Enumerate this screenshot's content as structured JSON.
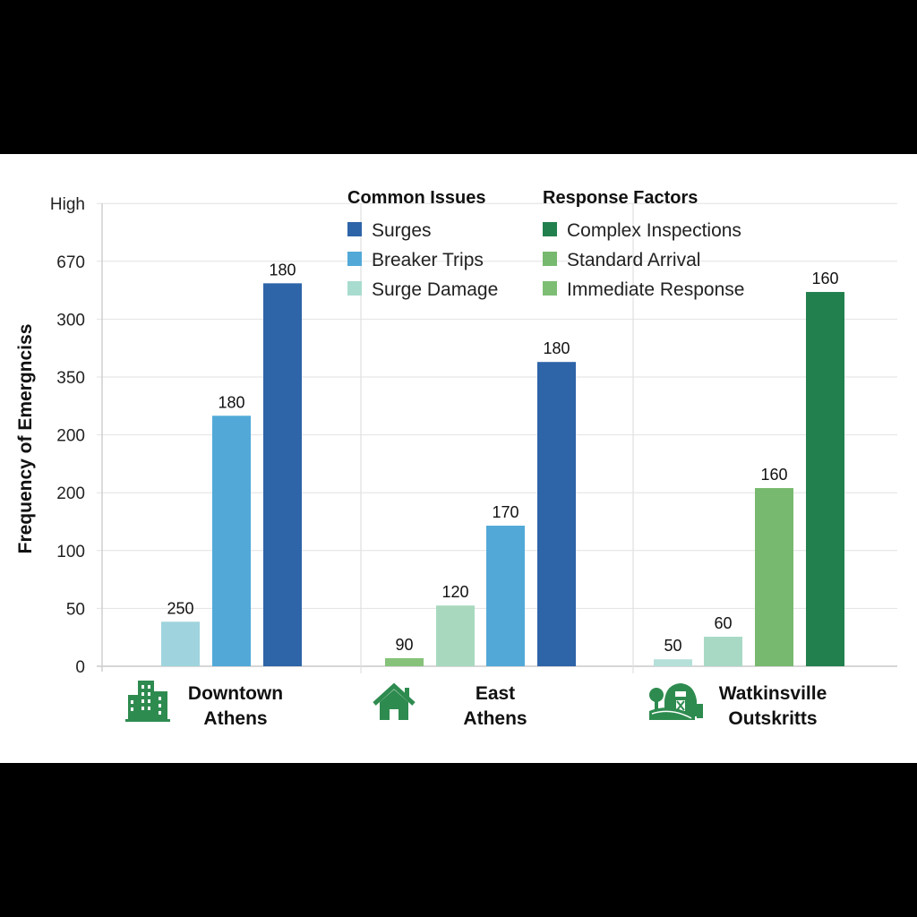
{
  "chart_data": {
    "type": "bar",
    "title": "",
    "ylabel": "Frequency of Emergnciss",
    "xlabel": "",
    "y_tick_labels": [
      "0",
      "50",
      "100",
      "200",
      "200",
      "350",
      "300",
      "670",
      "High"
    ],
    "grid": true,
    "legend_placement": "top-center",
    "legend_groups": [
      {
        "title": "Common Issues",
        "entries": [
          {
            "name": "Surges",
            "color": "#2e64a8"
          },
          {
            "name": "Breaker Trips",
            "color": "#52a9d8"
          },
          {
            "name": "Surge Damage",
            "color": "#a8dccf"
          }
        ]
      },
      {
        "title": "Response Factors",
        "entries": [
          {
            "name": "Complex Inspections",
            "color": "#22804e"
          },
          {
            "name": "Standard Arrival",
            "color": "#77b96e"
          },
          {
            "name": "Immediate Response",
            "color": "#7dbd74"
          }
        ]
      }
    ],
    "categories": [
      {
        "name": [
          "Downtown",
          "Athens"
        ],
        "icon": "city-buildings-icon",
        "bars": [
          {
            "label": "250",
            "level": 0.77,
            "color": "#9fd4de"
          },
          {
            "label": "180",
            "level": 4.33,
            "color": "#52a9d8"
          },
          {
            "label": "180",
            "level": 6.62,
            "color": "#2e64a8"
          }
        ]
      },
      {
        "name": [
          "East",
          "Athens"
        ],
        "icon": "house-icon",
        "bars": [
          {
            "label": "90",
            "level": 0.14,
            "color": "#86c27a"
          },
          {
            "label": "120",
            "level": 1.05,
            "color": "#a8d9bf"
          },
          {
            "label": "170",
            "level": 2.43,
            "color": "#52a9d8"
          },
          {
            "label": "180",
            "level": 5.26,
            "color": "#2e64a8"
          }
        ]
      },
      {
        "name": [
          "Watkinsville",
          "Outskritts"
        ],
        "icon": "farm-barn-icon",
        "bars": [
          {
            "label": "50",
            "level": 0.12,
            "color": "#b4e0d9"
          },
          {
            "label": "60",
            "level": 0.51,
            "color": "#a8d9c5"
          },
          {
            "label": "160",
            "level": 3.08,
            "color": "#77b96e"
          },
          {
            "label": "160",
            "level": 6.47,
            "color": "#22804e"
          }
        ]
      }
    ]
  }
}
